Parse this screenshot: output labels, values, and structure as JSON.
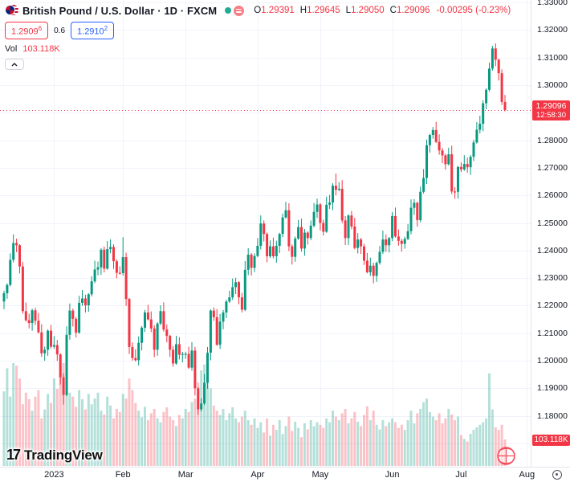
{
  "header": {
    "symbol_title": "British Pound / U.S. Dollar · 1D · FXCM",
    "ohlc_items": [
      {
        "label": "O",
        "value": "1.29391"
      },
      {
        "label": "H",
        "value": "1.29645"
      },
      {
        "label": "L",
        "value": "1.29050"
      },
      {
        "label": "C",
        "value": "1.29096"
      }
    ],
    "change": "-0.00295 (-0.23%)",
    "sell": {
      "main": "1.2909",
      "sup": "6"
    },
    "spread": "0.6",
    "buy": {
      "main": "1.2910",
      "sup": "2"
    },
    "vol_label": "Vol",
    "vol_value": "103.118K"
  },
  "logo": {
    "mark": "17",
    "name": "TradingView"
  },
  "axis": {
    "price_badge": {
      "price": "1.29096",
      "countdown": "12:58:30"
    },
    "volume_badge": "103.118K"
  },
  "chart_data": {
    "type": "candlestick+volume",
    "title": "British Pound / U.S. Dollar, 1D, FXCM",
    "price_axis_ticks": [
      "1.33000",
      "1.32000",
      "1.31000",
      "1.30000",
      "1.28000",
      "1.27000",
      "1.26000",
      "1.25000",
      "1.24000",
      "1.23000",
      "1.22000",
      "1.21000",
      "1.20000",
      "1.19000",
      "1.18000",
      "1.17000"
    ],
    "price_range": {
      "top": 1.33,
      "bottom": 1.17,
      "step": 0.01
    },
    "time_labels": [
      {
        "label": "2023",
        "index": 16
      },
      {
        "label": "Feb",
        "index": 38
      },
      {
        "label": "Mar",
        "index": 58
      },
      {
        "label": "Apr",
        "index": 81
      },
      {
        "label": "May",
        "index": 101
      },
      {
        "label": "Jun",
        "index": 124
      },
      {
        "label": "Jul",
        "index": 146
      },
      {
        "label": "Aug",
        "index": 167
      }
    ],
    "current_price": 1.29096,
    "last_candle": {
      "open": 1.29391,
      "high": 1.29645,
      "low": 1.2905,
      "close": 1.29096
    },
    "first_open": 1.2215,
    "closes": [
      1.2245,
      1.2275,
      1.2366,
      1.2427,
      1.2419,
      1.2342,
      1.218,
      1.2147,
      1.2137,
      1.2183,
      1.2145,
      1.2103,
      1.2027,
      1.204,
      1.2109,
      1.2051,
      1.2057,
      1.2023,
      1.194,
      1.1876,
      1.2094,
      1.2182,
      1.2152,
      1.2102,
      1.221,
      1.2226,
      1.2201,
      1.2241,
      1.2288,
      1.2331,
      1.2339,
      1.2403,
      1.2334,
      1.2405,
      1.2413,
      1.2361,
      1.2319,
      1.2318,
      1.2376,
      1.2224,
      1.205,
      1.201,
      1.2002,
      1.2065,
      1.212,
      1.2175,
      1.215,
      1.2117,
      1.204,
      1.2135,
      1.218,
      1.2113,
      1.209,
      1.204,
      1.199,
      1.206,
      1.2022,
      1.2025,
      1.2025,
      1.1975,
      1.2037,
      1.19,
      1.1824,
      1.1845,
      1.192,
      1.2029,
      1.2182,
      1.2158,
      1.2058,
      1.2142,
      1.2175,
      1.2215,
      1.223,
      1.2267,
      1.2285,
      1.223,
      1.2185,
      1.233,
      1.2385,
      1.2337,
      1.238,
      1.2417,
      1.2498,
      1.246,
      1.2379,
      1.2415,
      1.2379,
      1.2417,
      1.246,
      1.252,
      1.2546,
      1.2415,
      1.2377,
      1.2443,
      1.2485,
      1.2407,
      1.2465,
      1.2445,
      1.249,
      1.254,
      1.2567,
      1.25,
      1.2468,
      1.2566,
      1.2574,
      1.2635,
      1.262,
      1.2624,
      1.2509,
      1.2445,
      1.2527,
      1.2487,
      1.2409,
      1.244,
      1.2415,
      1.2363,
      1.2321,
      1.2345,
      1.2308,
      1.2355,
      1.2395,
      1.244,
      1.2419,
      1.2445,
      1.2525,
      1.2451,
      1.2435,
      1.2424,
      1.2442,
      1.247,
      1.2555,
      1.2573,
      1.251,
      1.2613,
      1.2663,
      1.2782,
      1.2819,
      1.2837,
      1.2794,
      1.2763,
      1.2745,
      1.2713,
      1.2749,
      1.2614,
      1.2613,
      1.2703,
      1.2694,
      1.2714,
      1.2702,
      1.274,
      1.2792,
      1.2838,
      1.286,
      1.2934,
      1.2983,
      1.306,
      1.3133,
      1.3092,
      1.3043,
      1.2939,
      1.29096
    ],
    "volumes_k": [
      290,
      380,
      270,
      400,
      390,
      340,
      240,
      285,
      260,
      215,
      270,
      295,
      185,
      220,
      280,
      245,
      340,
      300,
      385,
      400,
      325,
      285,
      270,
      230,
      295,
      260,
      220,
      280,
      240,
      262,
      285,
      215,
      200,
      270,
      235,
      185,
      222,
      210,
      280,
      262,
      340,
      295,
      245,
      215,
      190,
      230,
      178,
      205,
      222,
      185,
      170,
      210,
      228,
      192,
      178,
      155,
      198,
      185,
      222,
      210,
      248,
      262,
      325,
      372,
      395,
      345,
      302,
      235,
      215,
      198,
      222,
      178,
      205,
      228,
      185,
      170,
      192,
      215,
      178,
      160,
      185,
      148,
      170,
      130,
      185,
      118,
      160,
      140,
      178,
      124,
      155,
      192,
      136,
      172,
      148,
      112,
      166,
      142,
      178,
      154,
      170,
      160,
      148,
      185,
      170,
      215,
      192,
      178,
      205,
      222,
      166,
      185,
      210,
      172,
      155,
      198,
      232,
      178,
      215,
      160,
      142,
      178,
      155,
      170,
      185,
      170,
      148,
      160,
      140,
      178,
      215,
      166,
      205,
      222,
      248,
      262,
      210,
      192,
      178,
      205,
      166,
      185,
      222,
      200,
      178,
      192,
      120,
      105,
      95,
      125,
      140,
      150,
      160,
      170,
      185,
      360,
      220,
      150,
      140,
      160,
      103.118
    ],
    "wick_extremes": {
      "19": {
        "low": 1.1841
      },
      "38": {
        "high": 1.2448
      },
      "62": {
        "low": 1.1804
      },
      "106": {
        "high": 1.2679
      },
      "137": {
        "high": 1.2848
      },
      "156": {
        "high": 1.3142
      }
    },
    "colors": {
      "up": "#089981",
      "down": "#f23645",
      "vol_up": "rgba(8,153,129,0.30)",
      "vol_down": "rgba(242,54,69,0.30)",
      "grid": "#f0f3fa",
      "axis_border": "#e0e3eb",
      "badge": "#f23645",
      "text": "#131722"
    },
    "legend_position": "top-left",
    "grid": true
  }
}
